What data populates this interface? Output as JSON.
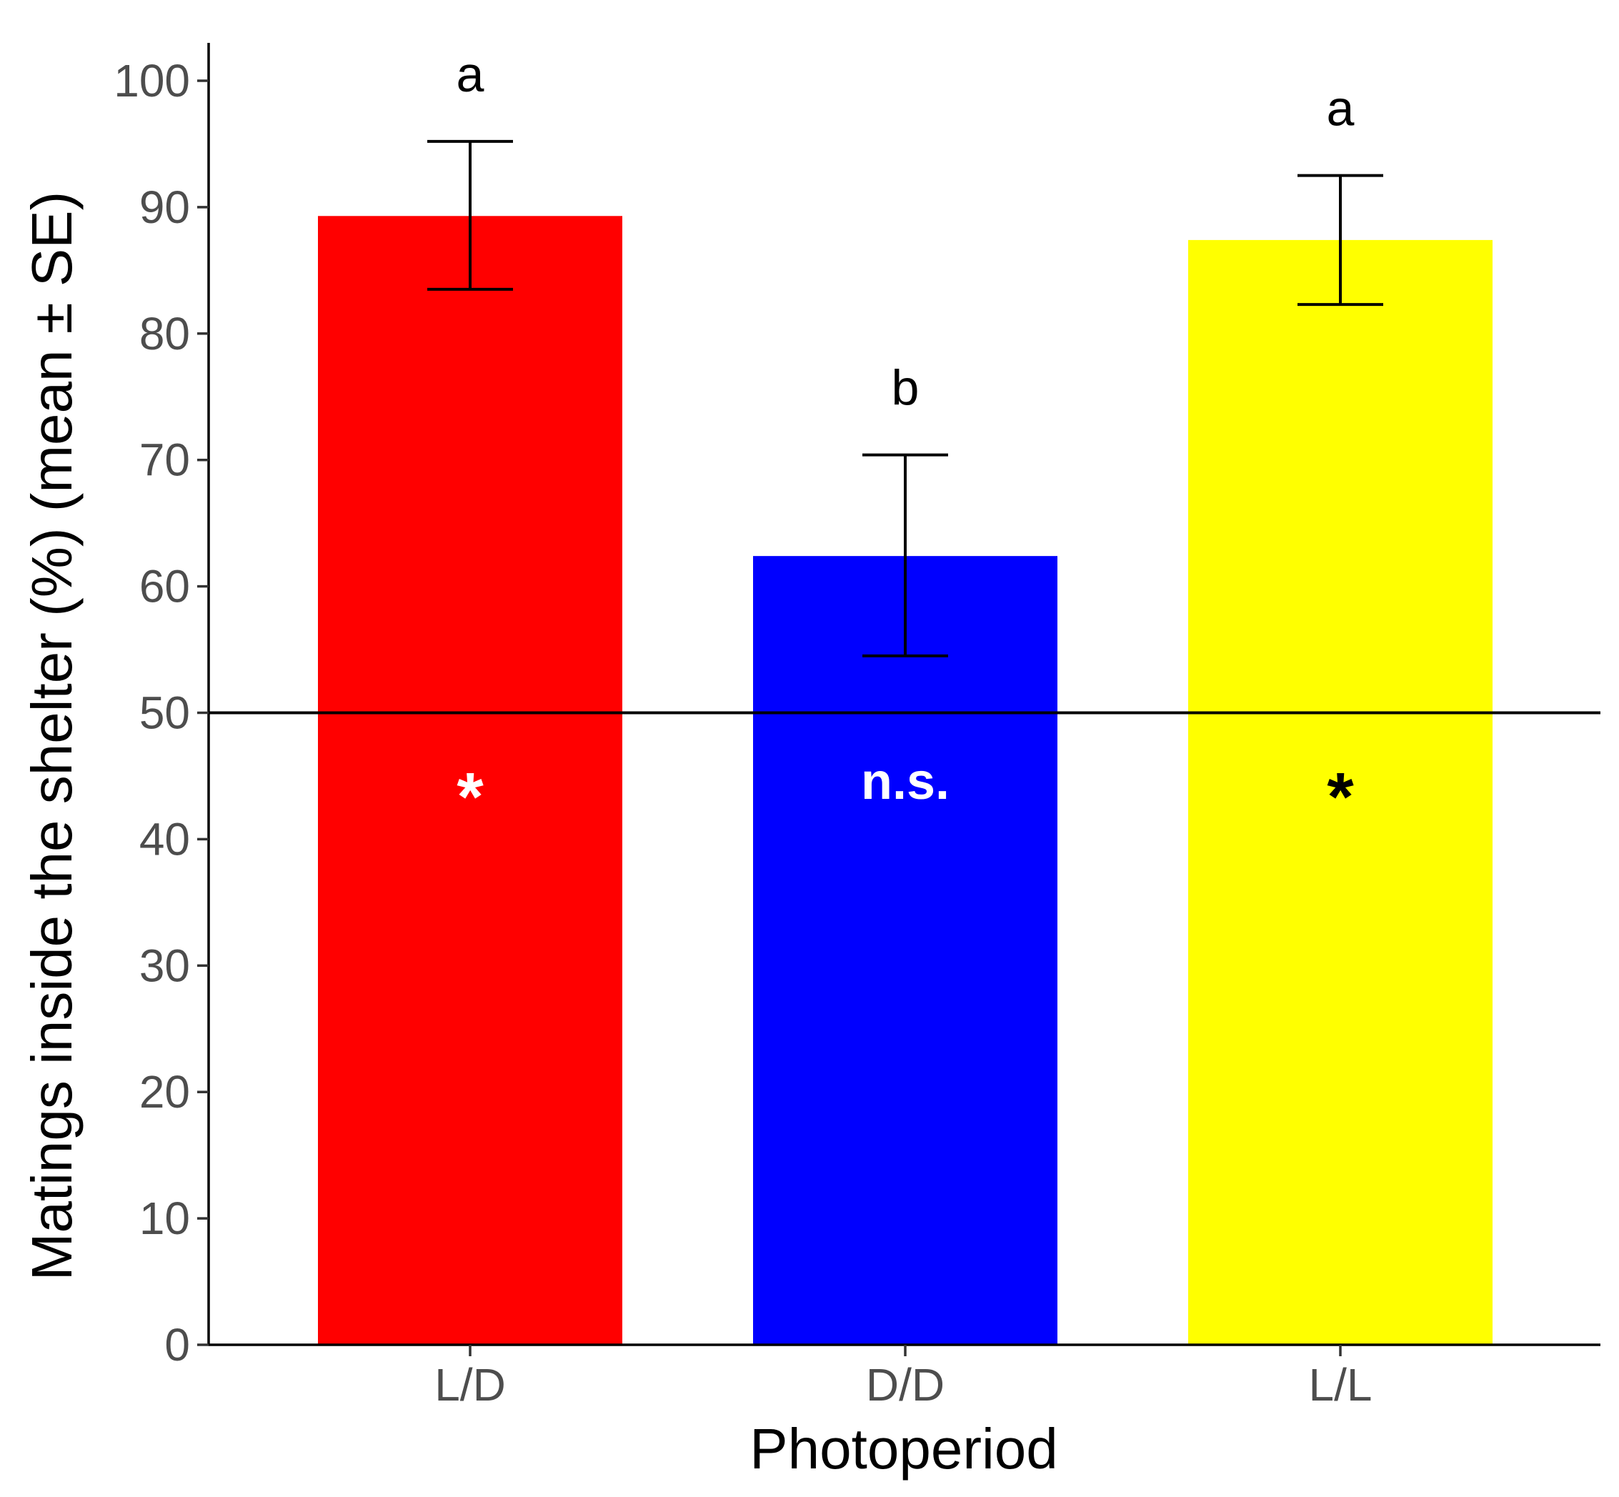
{
  "chart_data": {
    "type": "bar",
    "title": "",
    "xlabel": "Photoperiod",
    "ylabel": "Matings inside the shelter (%) (mean ± SE)",
    "ylim": [
      0,
      100
    ],
    "yticks": [
      0,
      10,
      20,
      30,
      40,
      50,
      60,
      70,
      80,
      90,
      100
    ],
    "grid": false,
    "categories": [
      "L/D",
      "D/D",
      "L/L"
    ],
    "values": [
      89.3,
      62.4,
      87.4
    ],
    "se_lower": [
      83.5,
      54.5,
      82.3
    ],
    "se_upper": [
      95.2,
      70.4,
      92.5
    ],
    "colors": [
      "#ff0000",
      "#0000ff",
      "#ffff00"
    ],
    "group_letters": [
      "a",
      "b",
      "a"
    ],
    "significance_labels": [
      "*",
      "n.s.",
      "*"
    ],
    "significance_label_colors": [
      "#ffffff",
      "#ffffff",
      "#000000"
    ],
    "reference_line": {
      "y": 50,
      "color": "#000000"
    }
  }
}
